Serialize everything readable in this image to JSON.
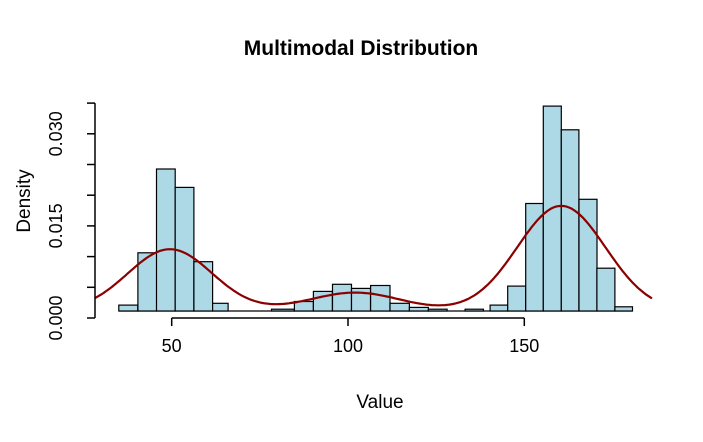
{
  "title": "Multimodal Distribution",
  "colors": {
    "background": "#FFFFFF",
    "bar_fill": "#ADD8E6",
    "bar_border": "#000000",
    "curve": "#8B0000",
    "axis": "#000000",
    "text": "#000000"
  },
  "chart_data": {
    "type": "bar",
    "subtype": "histogram-with-density-overlay",
    "title": "Multimodal Distribution",
    "xlabel": "Value",
    "ylabel": "Density",
    "xlim": [
      28,
      187
    ],
    "ylim": [
      0,
      0.035
    ],
    "grid": false,
    "legend": "none",
    "x_ticks": [
      {
        "value": 50,
        "label": "50"
      },
      {
        "value": 100,
        "label": "100"
      },
      {
        "value": 150,
        "label": "150"
      }
    ],
    "y_ticks": [
      {
        "value": 0.0,
        "label": "0.000"
      },
      {
        "value": 0.005,
        "label": ""
      },
      {
        "value": 0.01,
        "label": ""
      },
      {
        "value": 0.015,
        "label": "0.015"
      },
      {
        "value": 0.02,
        "label": ""
      },
      {
        "value": 0.025,
        "label": ""
      },
      {
        "value": 0.03,
        "label": "0.030"
      },
      {
        "value": 0.035,
        "label": ""
      }
    ],
    "bars": [
      {
        "x0": 35.0,
        "x1": 40.4,
        "density": 0.001
      },
      {
        "x0": 40.4,
        "x1": 45.7,
        "density": 0.0098
      },
      {
        "x0": 45.7,
        "x1": 51.0,
        "density": 0.0239
      },
      {
        "x0": 51.0,
        "x1": 56.3,
        "density": 0.0208
      },
      {
        "x0": 56.3,
        "x1": 61.6,
        "density": 0.0083
      },
      {
        "x0": 61.6,
        "x1": 66.0,
        "density": 0.0013
      },
      {
        "x0": 78.3,
        "x1": 84.8,
        "density": 0.0003
      },
      {
        "x0": 84.8,
        "x1": 90.2,
        "density": 0.0016
      },
      {
        "x0": 90.2,
        "x1": 95.6,
        "density": 0.0033
      },
      {
        "x0": 95.6,
        "x1": 101.0,
        "density": 0.0045
      },
      {
        "x0": 101.0,
        "x1": 106.4,
        "density": 0.0038
      },
      {
        "x0": 106.4,
        "x1": 111.9,
        "density": 0.0043
      },
      {
        "x0": 111.9,
        "x1": 117.4,
        "density": 0.0013
      },
      {
        "x0": 117.4,
        "x1": 122.8,
        "density": 0.0006
      },
      {
        "x0": 122.8,
        "x1": 128.1,
        "density": 0.0003
      },
      {
        "x0": 133.2,
        "x1": 138.4,
        "density": 0.0003
      },
      {
        "x0": 140.3,
        "x1": 145.3,
        "density": 0.001
      },
      {
        "x0": 145.3,
        "x1": 150.4,
        "density": 0.0042
      },
      {
        "x0": 150.4,
        "x1": 155.4,
        "density": 0.0181
      },
      {
        "x0": 155.4,
        "x1": 160.5,
        "density": 0.0345
      },
      {
        "x0": 160.5,
        "x1": 165.5,
        "density": 0.0305
      },
      {
        "x0": 165.5,
        "x1": 170.6,
        "density": 0.0188
      },
      {
        "x0": 170.6,
        "x1": 175.7,
        "density": 0.0072
      },
      {
        "x0": 175.7,
        "x1": 180.7,
        "density": 0.0007
      }
    ],
    "density_curve": {
      "range": [
        28.5,
        186.0
      ],
      "components": [
        {
          "center": 49.5,
          "sd": 12.0,
          "peak": 0.0104
        },
        {
          "center": 102.0,
          "sd": 13.0,
          "peak": 0.0031
        },
        {
          "center": 160.5,
          "sd": 12.5,
          "peak": 0.0177
        }
      ]
    }
  }
}
